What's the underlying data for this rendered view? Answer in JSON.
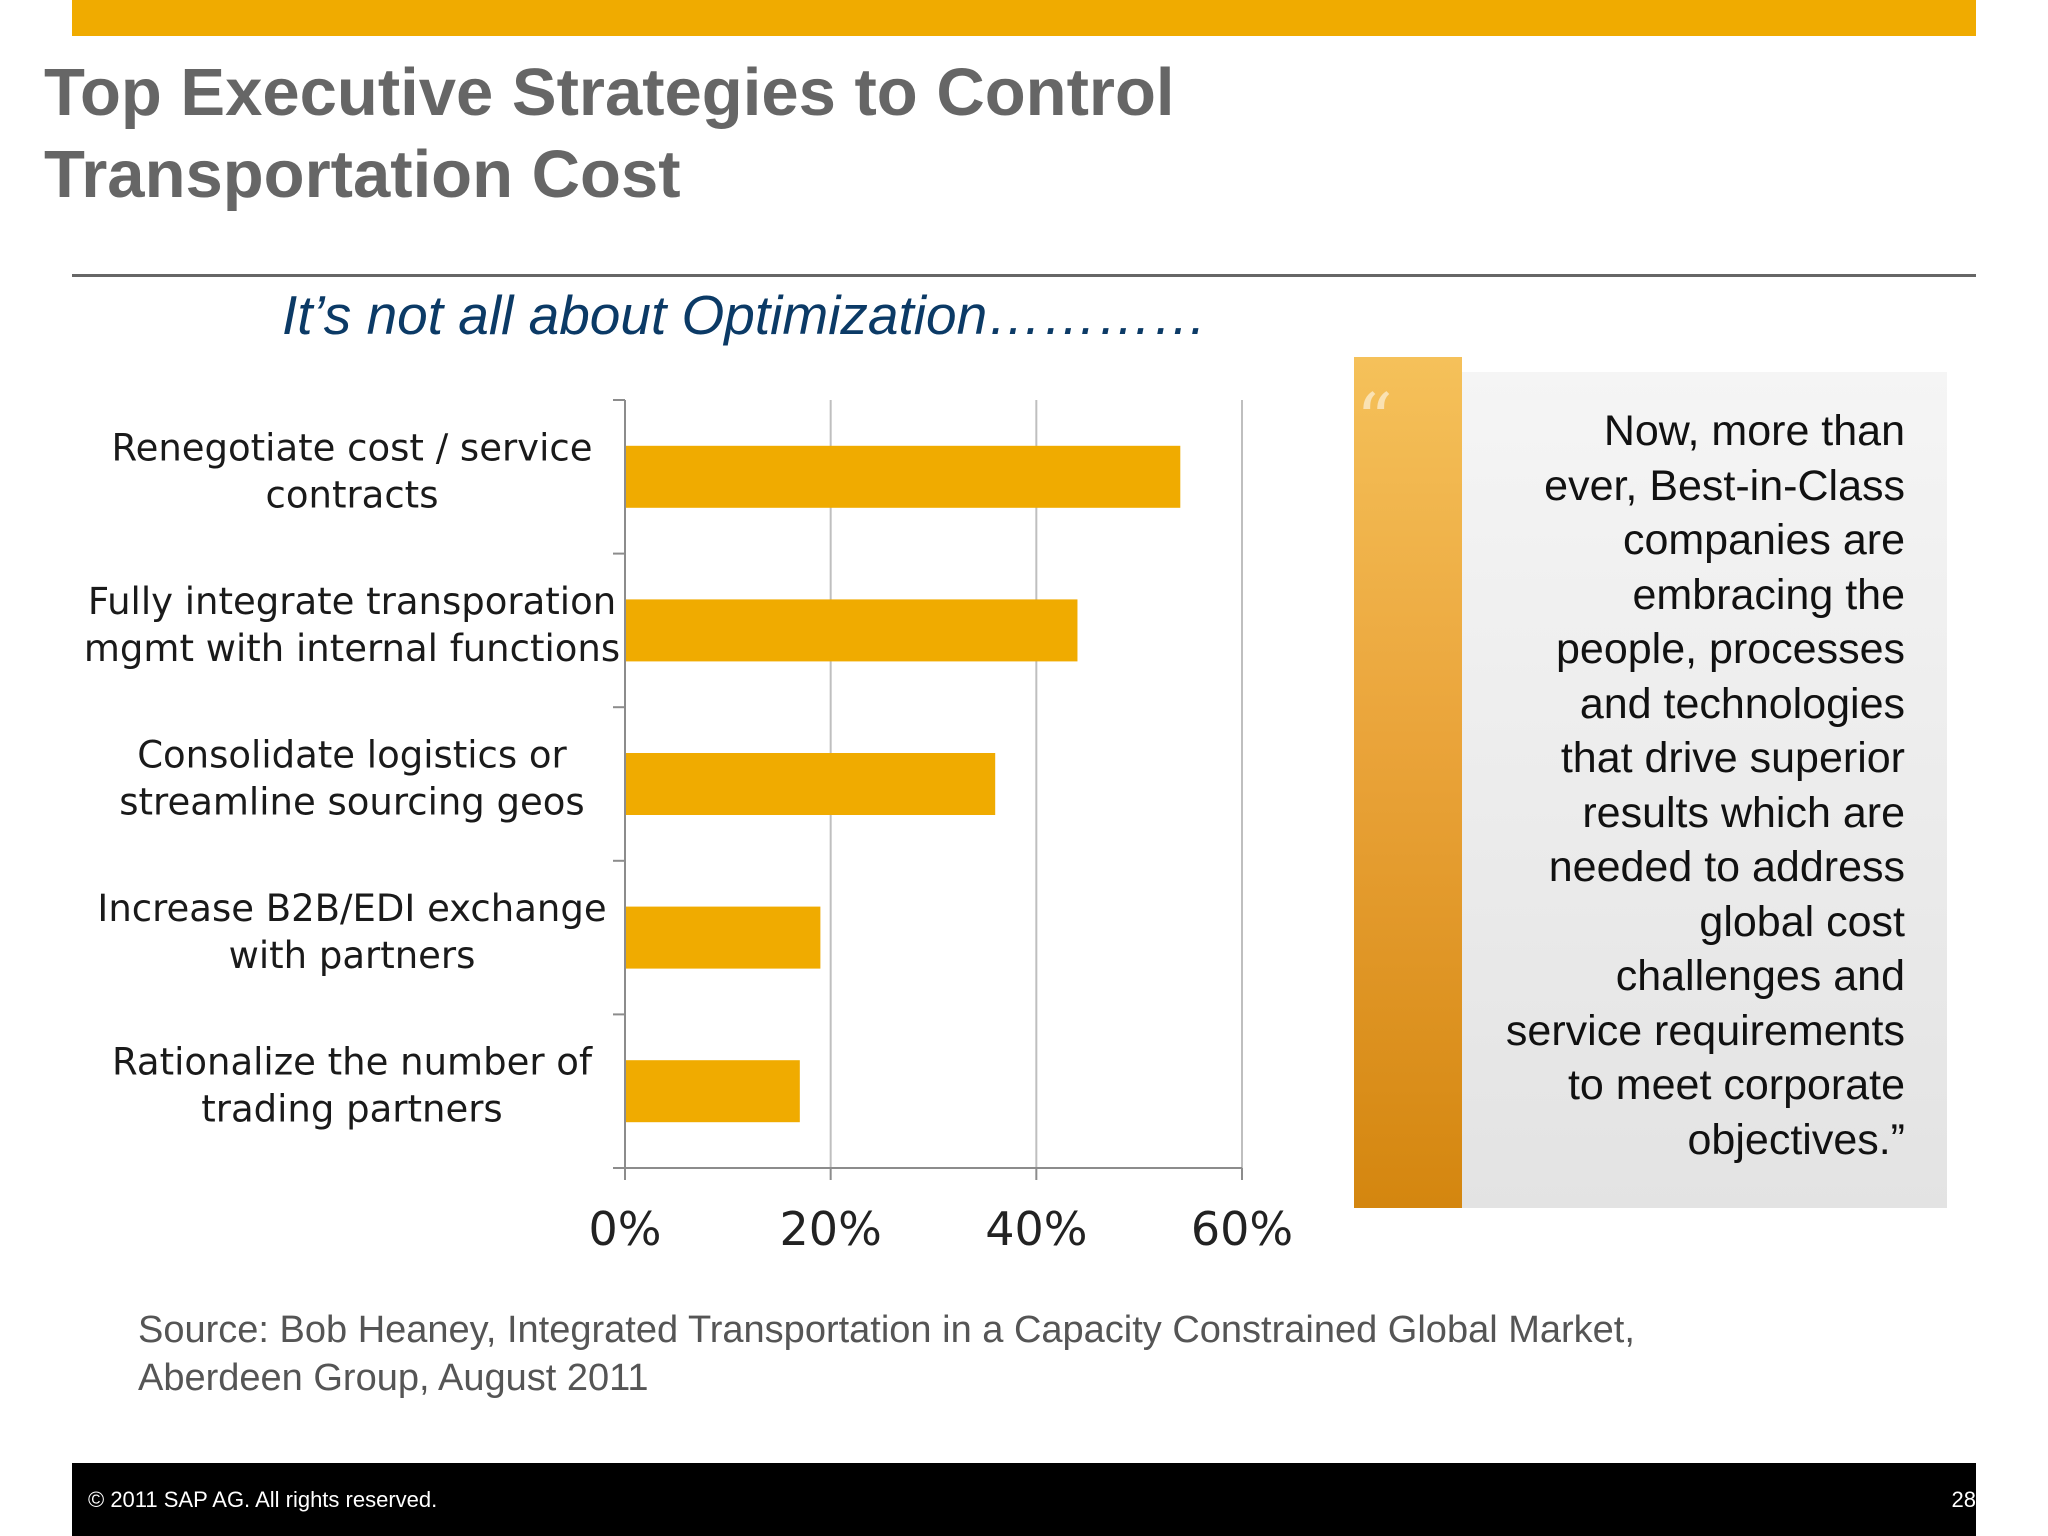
{
  "slide": {
    "title_lines": [
      "Top Executive Strategies to Control",
      "Transportation Cost"
    ],
    "subtitle": "It’s not all about Optimization…………",
    "quote_mark": "“",
    "quote_lines": [
      "Now, more than",
      "ever, Best-in-Class",
      "companies are",
      "embracing the",
      "people, processes",
      "and technologies",
      "that drive superior",
      "results which are",
      "needed to address",
      "global cost",
      "challenges and",
      "service requirements",
      "to meet corporate",
      "objectives.”"
    ],
    "source_lines": [
      "Source:  Bob Heaney,  Integrated Transportation in a Capacity Constrained Global Market,",
      "Aberdeen Group,  August 2011"
    ],
    "copyright": "©  2011 SAP AG. All rights reserved.",
    "page_number": "28"
  },
  "colors": {
    "accent": "#f0ab00",
    "title": "#666666",
    "subtitle": "#0b3a66",
    "bar": "#f0ab00",
    "gridline": "#bfbfbf",
    "axis": "#8c8c8c",
    "footer": "#000000"
  },
  "chart_data": {
    "type": "bar",
    "orientation": "horizontal",
    "categories": [
      [
        "Renegotiate cost / service",
        "contracts"
      ],
      [
        "Fully integrate transporation",
        "mgmt with internal functions"
      ],
      [
        "Consolidate logistics or",
        "streamline sourcing geos"
      ],
      [
        "Increase B2B/EDI exchange",
        "with partners"
      ],
      [
        "Rationalize the number of",
        "trading partners"
      ]
    ],
    "values": [
      54,
      44,
      36,
      19,
      17
    ],
    "xlim": [
      0,
      60
    ],
    "ticks": [
      0,
      20,
      40,
      60
    ],
    "tick_labels": [
      "0%",
      "20%",
      "40%",
      "60%"
    ],
    "grid": true
  }
}
